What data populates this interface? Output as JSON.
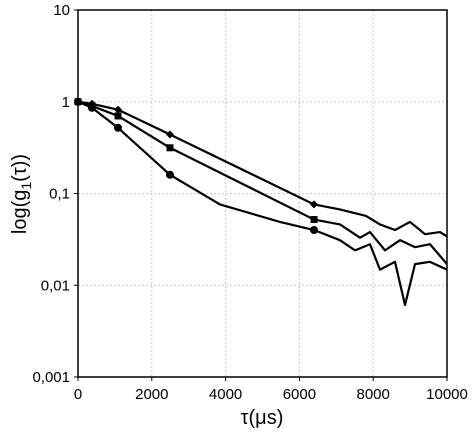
{
  "chart_data": {
    "type": "line",
    "xlabel": "τ(μs)",
    "ylabel": [
      "log(g",
      "1",
      "(τ))"
    ],
    "xlim": [
      0,
      10000
    ],
    "xticks": [
      0,
      2000,
      4000,
      6000,
      8000,
      10000
    ],
    "ylim": [
      0.001,
      10
    ],
    "yticks": [
      {
        "value": 0.001,
        "label": "0,001"
      },
      {
        "value": 0.01,
        "label": "0,01"
      },
      {
        "value": 0.1,
        "label": "0,1"
      },
      1,
      10
    ],
    "log_y": true,
    "grid": true,
    "series": [
      {
        "marker": "diamond",
        "color": "#000000",
        "x": [
          0,
          379,
          1084,
          2493,
          6396,
          7100,
          7805,
          8184,
          8591,
          8997,
          9404,
          9810,
          10000
        ],
        "values": [
          1,
          0.95,
          0.82,
          0.44,
          0.076,
          0.067,
          0.057,
          0.046,
          0.04,
          0.049,
          0.036,
          0.038,
          0.034
        ]
      },
      {
        "marker": "square",
        "color": "#000000",
        "x": [
          0,
          379,
          1084,
          2493,
          6396,
          7100,
          7642,
          7913,
          8320,
          8726,
          9133,
          9539,
          10000
        ],
        "values": [
          1,
          0.9,
          0.7,
          0.315,
          0.052,
          0.046,
          0.033,
          0.038,
          0.024,
          0.031,
          0.026,
          0.028,
          0.017
        ]
      },
      {
        "marker": "circle",
        "color": "#000000",
        "x": [
          0,
          379,
          1084,
          2493,
          3848,
          5474,
          6396,
          7100,
          7507,
          7913,
          8184,
          8591,
          8862,
          9133,
          9539,
          10000
        ],
        "values": [
          1,
          0.86,
          0.52,
          0.16,
          0.076,
          0.049,
          0.04,
          0.031,
          0.024,
          0.028,
          0.0148,
          0.018,
          0.0061,
          0.017,
          0.018,
          0.0148
        ]
      }
    ]
  }
}
